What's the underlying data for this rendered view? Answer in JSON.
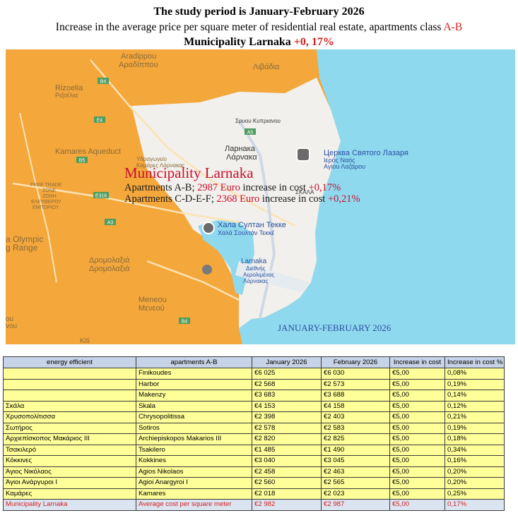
{
  "header": {
    "line1": "The study period is January-February 2026",
    "line2_prefix": "Increase in the average price per square meter of residential real estate, apartments class ",
    "line2_class": "A-B",
    "line3_prefix": "Municipality Larnaka ",
    "line3_value": "+0, 17%"
  },
  "map": {
    "colors": {
      "land": "#f4a73b",
      "municipality": "#f2f0ec",
      "sea": "#8fd9ef",
      "label_red": "#c8102e",
      "label_blue": "#2a4fa0"
    },
    "place_labels": [
      "Aradippou",
      "Αραδίππου",
      "Λιβάδια",
      "Rizoelia",
      "Ριζοέλια",
      "Kamares Aqueduct",
      "Υδραγωγείο",
      "Καμάρες Λάρνακας",
      "FREE TRADE",
      "ZONE",
      "ΖΩΝΗ",
      "ΕΛΕΥΘΕΡΟΥ",
      "ΕΜΠΟΡΙΟΥ",
      "Ларнака",
      "Λάρνακα",
      "Σρυου Κυπριανου",
      "Церква Святого Лазаря",
      "Ιερός Ναός",
      "Αγίου Λαζάρου",
      "ΣΚΑΛΑ",
      "Хала Султан Текке",
      "Χαλά Σουλτάν Τεκκέ",
      "a Olympic",
      "g Range",
      "Δρομολαξιά",
      "Δρομολαξιά",
      "Meneou",
      "Μενεού",
      "Larnaka",
      "Διεθνής",
      "Αερολιμένας",
      "Λάρνακας",
      "ou",
      "vou",
      "Kiti"
    ],
    "road_shields": [
      "B4",
      "E4",
      "B5",
      "E316",
      "A3",
      "A5",
      "B4"
    ],
    "overlay": {
      "title": "Municipality Larnaka",
      "line1_prefix": "Apartments A-B; ",
      "line1_price": "2987 Euro",
      "line1_mid": " increase in cost ",
      "line1_pct": "+0,17%",
      "line2_prefix": "Apartments C-D-E-F; ",
      "line2_price": "2368 Euro",
      "line2_mid": " increase in cost ",
      "line2_pct": "+0,21%",
      "period": "JANUARY-FEBRUARY 2026"
    }
  },
  "table": {
    "headers": [
      "energy efficient",
      "apartments A-B",
      "January 2026",
      "February 2026",
      "Increase in cost",
      "Increase in cost  %"
    ],
    "rows": [
      [
        "",
        "Finikoudes",
        "€6 025",
        "€6 030",
        "€5,00",
        "0,08%"
      ],
      [
        "",
        "Harbor",
        "€2 568",
        "€2 573",
        "€5,00",
        "0,19%"
      ],
      [
        "",
        "Makenzy",
        "€3 683",
        "€3 688",
        "€5,00",
        "0,14%"
      ],
      [
        "Σκάλα",
        "Skala",
        "€4 153",
        "€4 158",
        "€5,00",
        "0,12%"
      ],
      [
        "Χρυσοπολίτισσα",
        "Chrysopolitissa",
        "€2 398",
        "€2 403",
        "€5,00",
        "0,21%"
      ],
      [
        "Σωτήρος",
        "Sotiros",
        "€2 578",
        "€2 583",
        "€5,00",
        "0,19%"
      ],
      [
        "Αρχιεπίσκοπος Μακάριος ΙΙΙ",
        "Archiepiskopos Makarios III",
        "€2 820",
        "€2 825",
        "€5,00",
        "0,18%"
      ],
      [
        "Τσακιλερό",
        "Tsakilero",
        "€1 485",
        "€1 490",
        "€5,00",
        "0,34%"
      ],
      [
        "Κόκκινες",
        "Kokkines",
        "€3 040",
        "€3 045",
        "€5,00",
        "0,16%"
      ],
      [
        "Άγιος Νικόλαος",
        "Agios Nikolaos",
        "€2 458",
        "€2 463",
        "€5,00",
        "0,20%"
      ],
      [
        "Άγιοι Ανάργυροι Ι",
        "Agioi Anargyroi I",
        "€2 560",
        "€2 565",
        "€5,00",
        "0,20%"
      ],
      [
        "Καμάρες",
        "Kamares",
        "€2 018",
        "€2 023",
        "€5,00",
        "0,25%"
      ]
    ],
    "total": [
      "Municipality Larnaka",
      "Average cost per square meter",
      "€2 982",
      "€2 987",
      "€5,00",
      "0,17%"
    ]
  }
}
